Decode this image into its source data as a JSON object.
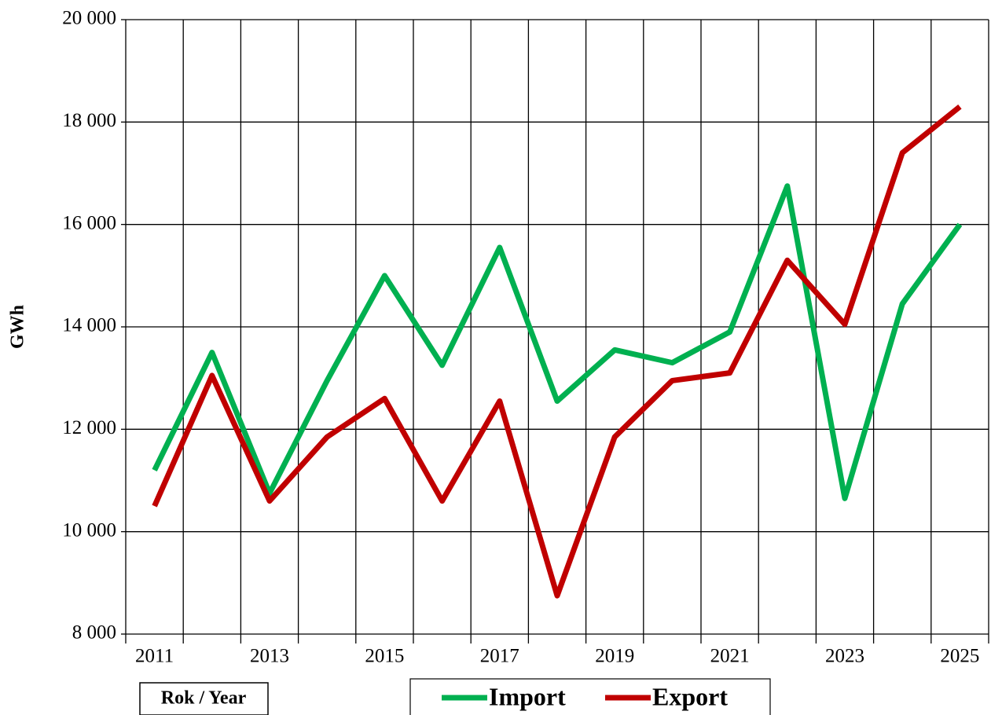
{
  "chart_data": {
    "type": "line",
    "y_label": "GWh",
    "x_label": "Rok / Year",
    "categories": [
      "2011",
      null,
      "2013",
      null,
      "2015",
      null,
      "2017",
      null,
      "2019",
      null,
      "2021",
      null,
      "2023",
      null,
      "2025"
    ],
    "series": [
      {
        "name": "Import",
        "color": "#00b050",
        "values": [
          11200,
          13500,
          10750,
          12950,
          15000,
          13250,
          15550,
          12550,
          13550,
          13300,
          13900,
          16750,
          10650,
          14450,
          16000
        ]
      },
      {
        "name": "Export",
        "color": "#c00000",
        "values": [
          10500,
          13050,
          10600,
          11850,
          12600,
          10600,
          12550,
          8750,
          11850,
          12950,
          13100,
          15300,
          14050,
          17400,
          18300
        ]
      }
    ],
    "ylim": [
      8000,
      20000
    ],
    "yticks": [
      {
        "value": 8000,
        "label": "8 000"
      },
      {
        "value": 10000,
        "label": "10 000"
      },
      {
        "value": 12000,
        "label": "12 000"
      },
      {
        "value": 14000,
        "label": "14 000"
      },
      {
        "value": 16000,
        "label": "16 000"
      },
      {
        "value": 18000,
        "label": "18 000"
      },
      {
        "value": 20000,
        "label": "20 000"
      }
    ],
    "grid": true,
    "legend": "bottom"
  }
}
